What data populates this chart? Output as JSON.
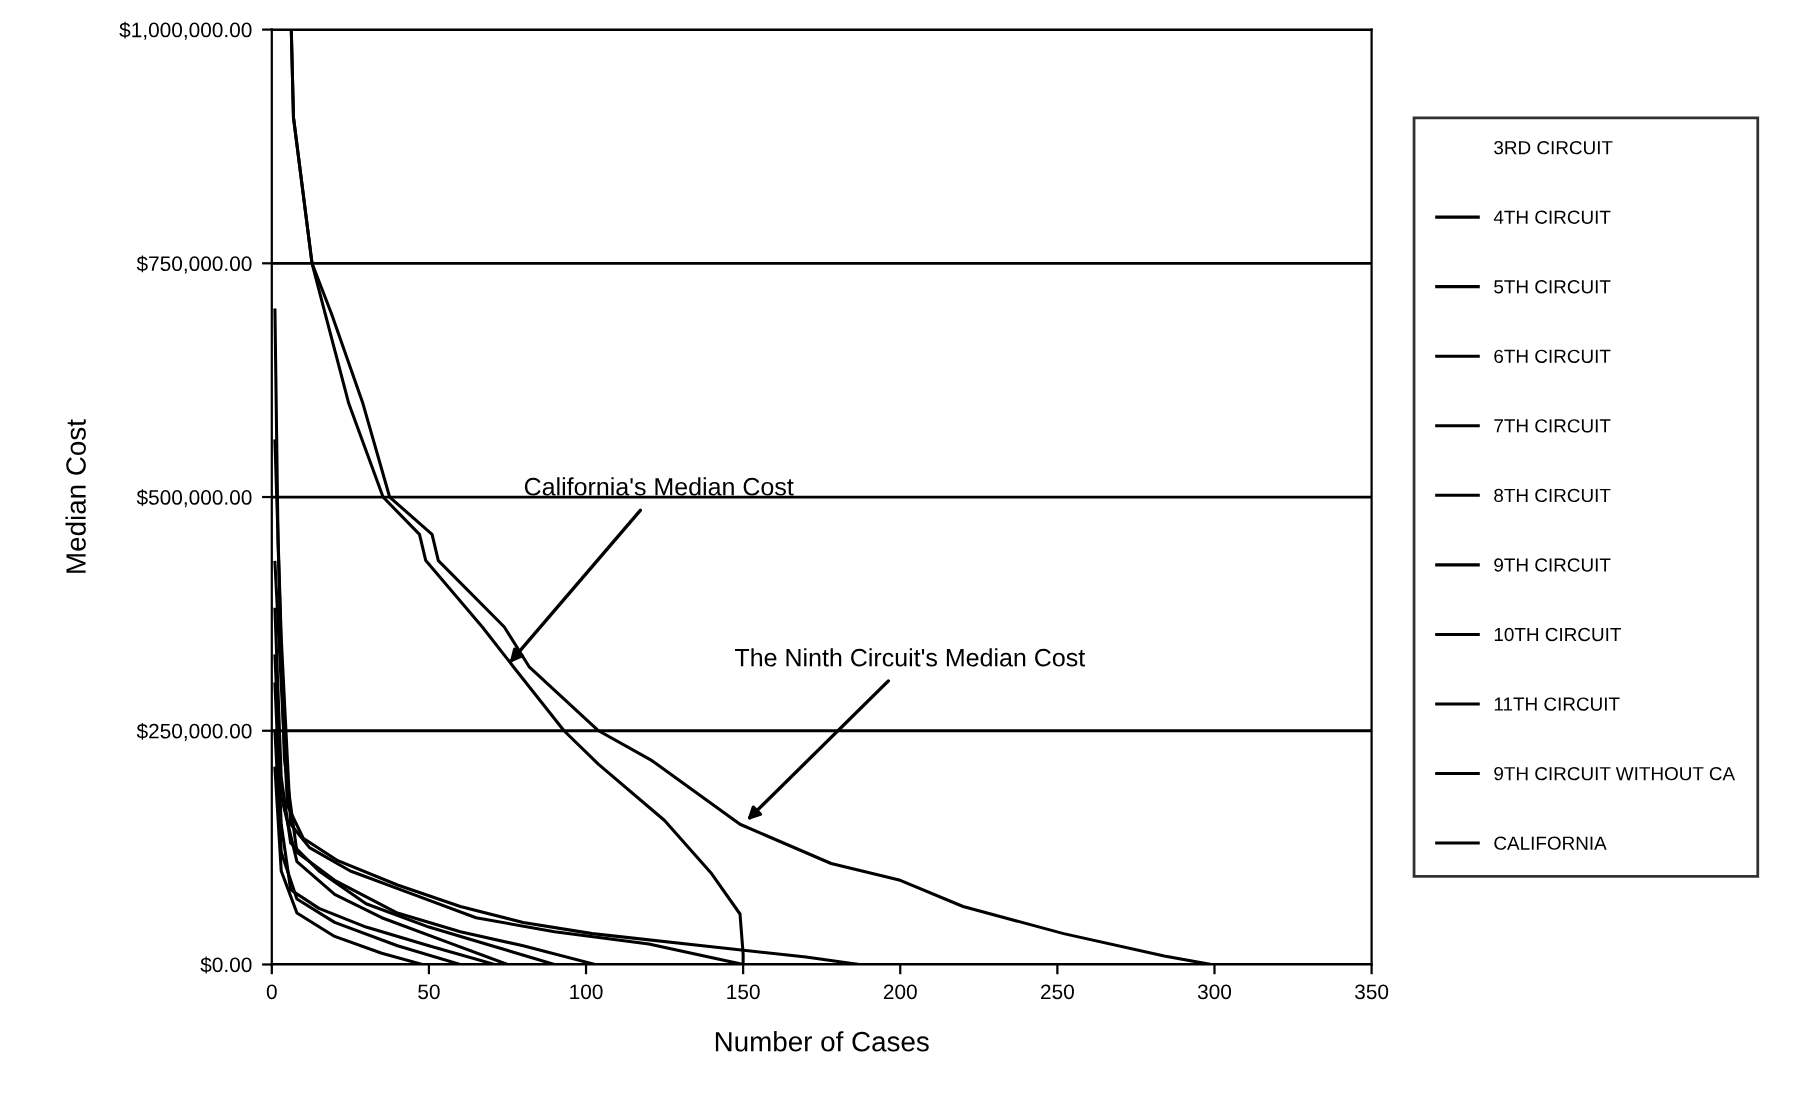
{
  "chart_data": {
    "type": "line",
    "xlabel": "Number of Cases",
    "ylabel": "Median Cost",
    "xlim": [
      0,
      350
    ],
    "xticks": [
      0,
      50,
      100,
      150,
      200,
      250,
      300,
      350
    ],
    "ylim": [
      0,
      1000000
    ],
    "yticks": [
      {
        "value": 0,
        "label": "$0.00"
      },
      {
        "value": 250000,
        "label": "$250,000.00"
      },
      {
        "value": 500000,
        "label": "$500,000.00"
      },
      {
        "value": 750000,
        "label": "$750,000.00"
      },
      {
        "value": 1000000,
        "label": "$1,000,000.00"
      }
    ],
    "grid": "y",
    "legend": "right",
    "line_style": "solid",
    "marker": "none",
    "annotations": [
      {
        "text": "California's Median Cost",
        "x": 74.5,
        "y": 318000
      },
      {
        "text": "The Ninth Circuit's Median Cost",
        "x": 150,
        "y": 150000
      }
    ],
    "series": [
      {
        "name": "3RD CIRCUIT"
      },
      {
        "name": "4TH CIRCUIT",
        "color": "#000000",
        "x": [
          1,
          3,
          8,
          20,
          40,
          60
        ],
        "values": [
          250000,
          120000,
          70000,
          45000,
          20000,
          0
        ]
      },
      {
        "name": "5TH CIRCUIT",
        "color": "#000000",
        "x": [
          1,
          3,
          8,
          20,
          35,
          48
        ],
        "values": [
          210000,
          100000,
          55000,
          30000,
          12000,
          0
        ]
      },
      {
        "name": "6TH CIRCUIT",
        "color": "#000000",
        "x": [
          1,
          2,
          4,
          8,
          20,
          40,
          60,
          80,
          103
        ],
        "values": [
          700000,
          450000,
          220000,
          120000,
          90000,
          55000,
          35000,
          20000,
          0
        ]
      },
      {
        "name": "7TH CIRCUIT",
        "color": "#000000",
        "x": [
          1,
          3,
          8,
          20,
          35,
          55,
          75
        ],
        "values": [
          330000,
          180000,
          110000,
          75000,
          50000,
          25000,
          0
        ]
      },
      {
        "name": "8TH CIRCUIT",
        "color": "#000000",
        "x": [
          1,
          3,
          6,
          15,
          30,
          50,
          71
        ],
        "values": [
          300000,
          150000,
          80000,
          60000,
          40000,
          20000,
          0
        ]
      },
      {
        "name": "9TH CIRCUIT",
        "color": "#000000",
        "x": [
          6.2,
          6.9,
          12.8,
          19,
          29,
          37.5,
          51,
          53,
          74,
          82,
          104,
          121,
          149,
          178,
          200,
          220,
          252,
          284,
          299
        ],
        "values": [
          1000000,
          906000,
          750000,
          696000,
          600000,
          500000,
          460000,
          432000,
          361000,
          318000,
          250000,
          218000,
          150000,
          108000,
          90000,
          62000,
          33000,
          9000,
          0
        ]
      },
      {
        "name": "10TH CIRCUIT",
        "color": "#000000",
        "x": [
          1,
          3,
          6,
          15,
          30,
          50,
          70,
          90
        ],
        "values": [
          380000,
          200000,
          130000,
          100000,
          65000,
          40000,
          20000,
          0
        ]
      },
      {
        "name": "11TH CIRCUIT",
        "color": "#000000",
        "x": [
          1,
          3,
          5,
          10,
          21,
          40,
          60,
          80,
          102,
          140,
          170,
          187
        ],
        "values": [
          430000,
          300000,
          170000,
          135000,
          111000,
          85000,
          62000,
          45000,
          33000,
          19000,
          8000,
          0
        ]
      },
      {
        "name": "9TH CIRCUIT WITHOUT CA",
        "color": "#000000",
        "x": [
          1,
          3,
          6,
          12,
          25,
          45,
          65,
          90,
          120,
          150
        ],
        "values": [
          560000,
          350000,
          150000,
          125000,
          100000,
          75000,
          50000,
          35000,
          22000,
          0
        ]
      },
      {
        "name": "CALIFORNIA",
        "color": "#000000",
        "x": [
          6.2,
          6.9,
          12.8,
          17,
          24.5,
          35.4,
          47,
          49,
          67,
          77,
          93,
          104,
          125,
          140,
          149,
          150,
          150
        ],
        "values": [
          1000000,
          906000,
          750000,
          696000,
          600000,
          500000,
          460000,
          432000,
          361000,
          318000,
          250000,
          214000,
          154000,
          97000,
          54000,
          11000,
          0
        ]
      }
    ]
  }
}
